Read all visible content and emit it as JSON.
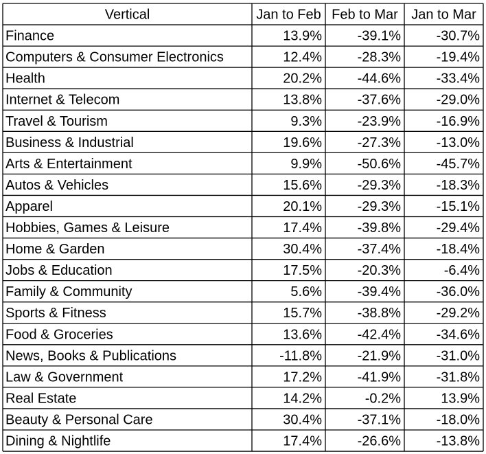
{
  "chart_data": {
    "type": "table",
    "columns": [
      "Vertical",
      "Jan to Feb",
      "Feb to Mar",
      "Jan to Mar"
    ],
    "rows": [
      [
        "Finance",
        "13.9%",
        "-39.1%",
        "-30.7%"
      ],
      [
        "Computers & Consumer Electronics",
        "12.4%",
        "-28.3%",
        "-19.4%"
      ],
      [
        "Health",
        "20.2%",
        "-44.6%",
        "-33.4%"
      ],
      [
        "Internet & Telecom",
        "13.8%",
        "-37.6%",
        "-29.0%"
      ],
      [
        "Travel & Tourism",
        "9.3%",
        "-23.9%",
        "-16.9%"
      ],
      [
        "Business & Industrial",
        "19.6%",
        "-27.3%",
        "-13.0%"
      ],
      [
        "Arts & Entertainment",
        "9.9%",
        "-50.6%",
        "-45.7%"
      ],
      [
        "Autos & Vehicles",
        "15.6%",
        "-29.3%",
        "-18.3%"
      ],
      [
        "Apparel",
        "20.1%",
        "-29.3%",
        "-15.1%"
      ],
      [
        "Hobbies, Games & Leisure",
        "17.4%",
        "-39.8%",
        "-29.4%"
      ],
      [
        "Home & Garden",
        "30.4%",
        "-37.4%",
        "-18.4%"
      ],
      [
        "Jobs & Education",
        "17.5%",
        "-20.3%",
        "-6.4%"
      ],
      [
        "Family & Community",
        "5.6%",
        "-39.4%",
        "-36.0%"
      ],
      [
        "Sports & Fitness",
        "15.7%",
        "-38.8%",
        "-29.2%"
      ],
      [
        "Food & Groceries",
        "13.6%",
        "-42.4%",
        "-34.6%"
      ],
      [
        "News, Books & Publications",
        "-11.8%",
        "-21.9%",
        "-31.0%"
      ],
      [
        "Law & Government",
        "17.2%",
        "-41.9%",
        "-31.8%"
      ],
      [
        "Real Estate",
        "14.2%",
        "-0.2%",
        "13.9%"
      ],
      [
        "Beauty & Personal Care",
        "30.4%",
        "-37.1%",
        "-18.0%"
      ],
      [
        "Dining & Nightlife",
        "17.4%",
        "-26.6%",
        "-13.8%"
      ]
    ]
  }
}
